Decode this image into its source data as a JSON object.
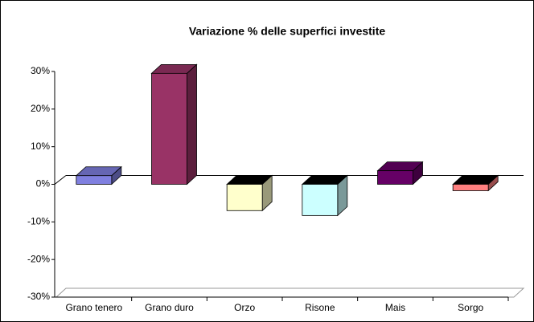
{
  "chart_data": {
    "type": "bar3d",
    "title": "Variazione % delle superfici investite",
    "categories": [
      "Grano tenero",
      "Grano duro",
      "Orzo",
      "Risone",
      "Mais",
      "Sorgo"
    ],
    "values": [
      2.3,
      29.5,
      -7,
      -8.3,
      3.6,
      -1.7
    ],
    "colors": [
      "#8080e0",
      "#993366",
      "#ffffcc",
      "#ccffff",
      "#660066",
      "#ff8080"
    ],
    "ylim": [
      -30,
      30
    ],
    "yticks": [
      {
        "value": -30,
        "label": "-30%"
      },
      {
        "value": -20,
        "label": "-20%"
      },
      {
        "value": -10,
        "label": "-10%"
      },
      {
        "value": 0,
        "label": "0%"
      },
      {
        "value": 10,
        "label": "10%"
      },
      {
        "value": 20,
        "label": "20%"
      },
      {
        "value": 30,
        "label": "30%"
      }
    ]
  }
}
